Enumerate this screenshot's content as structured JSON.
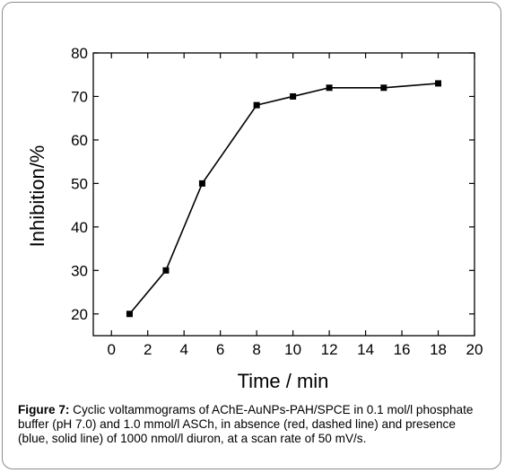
{
  "chart_data": {
    "type": "line",
    "title": "",
    "xlabel": "Time / min",
    "ylabel": "Inhibition/%",
    "x": [
      1,
      3,
      5,
      8,
      10,
      12,
      15,
      18
    ],
    "series": [
      {
        "values": [
          20,
          30,
          50,
          68,
          70,
          72,
          72,
          73
        ],
        "color": "#000000",
        "marker": "square"
      }
    ],
    "xlim": [
      -1,
      20
    ],
    "ylim": [
      15,
      80
    ],
    "xticks": [
      0,
      2,
      4,
      6,
      8,
      10,
      12,
      14,
      16,
      18,
      20
    ],
    "yticks": [
      20,
      30,
      40,
      50,
      60,
      70,
      80
    ],
    "grid": false,
    "legend": "none"
  },
  "caption": {
    "label": "Figure 7:",
    "text": " Cyclic voltammograms of AChE-AuNPs-PAH/SPCE in 0.1 mol/l phosphate buffer (pH 7.0) and 1.0 mmol/l ASCh, in absence (red, dashed line) and presence (blue, solid line) of 1000 nmol/l diuron, at a scan rate of 50 mV/s."
  }
}
